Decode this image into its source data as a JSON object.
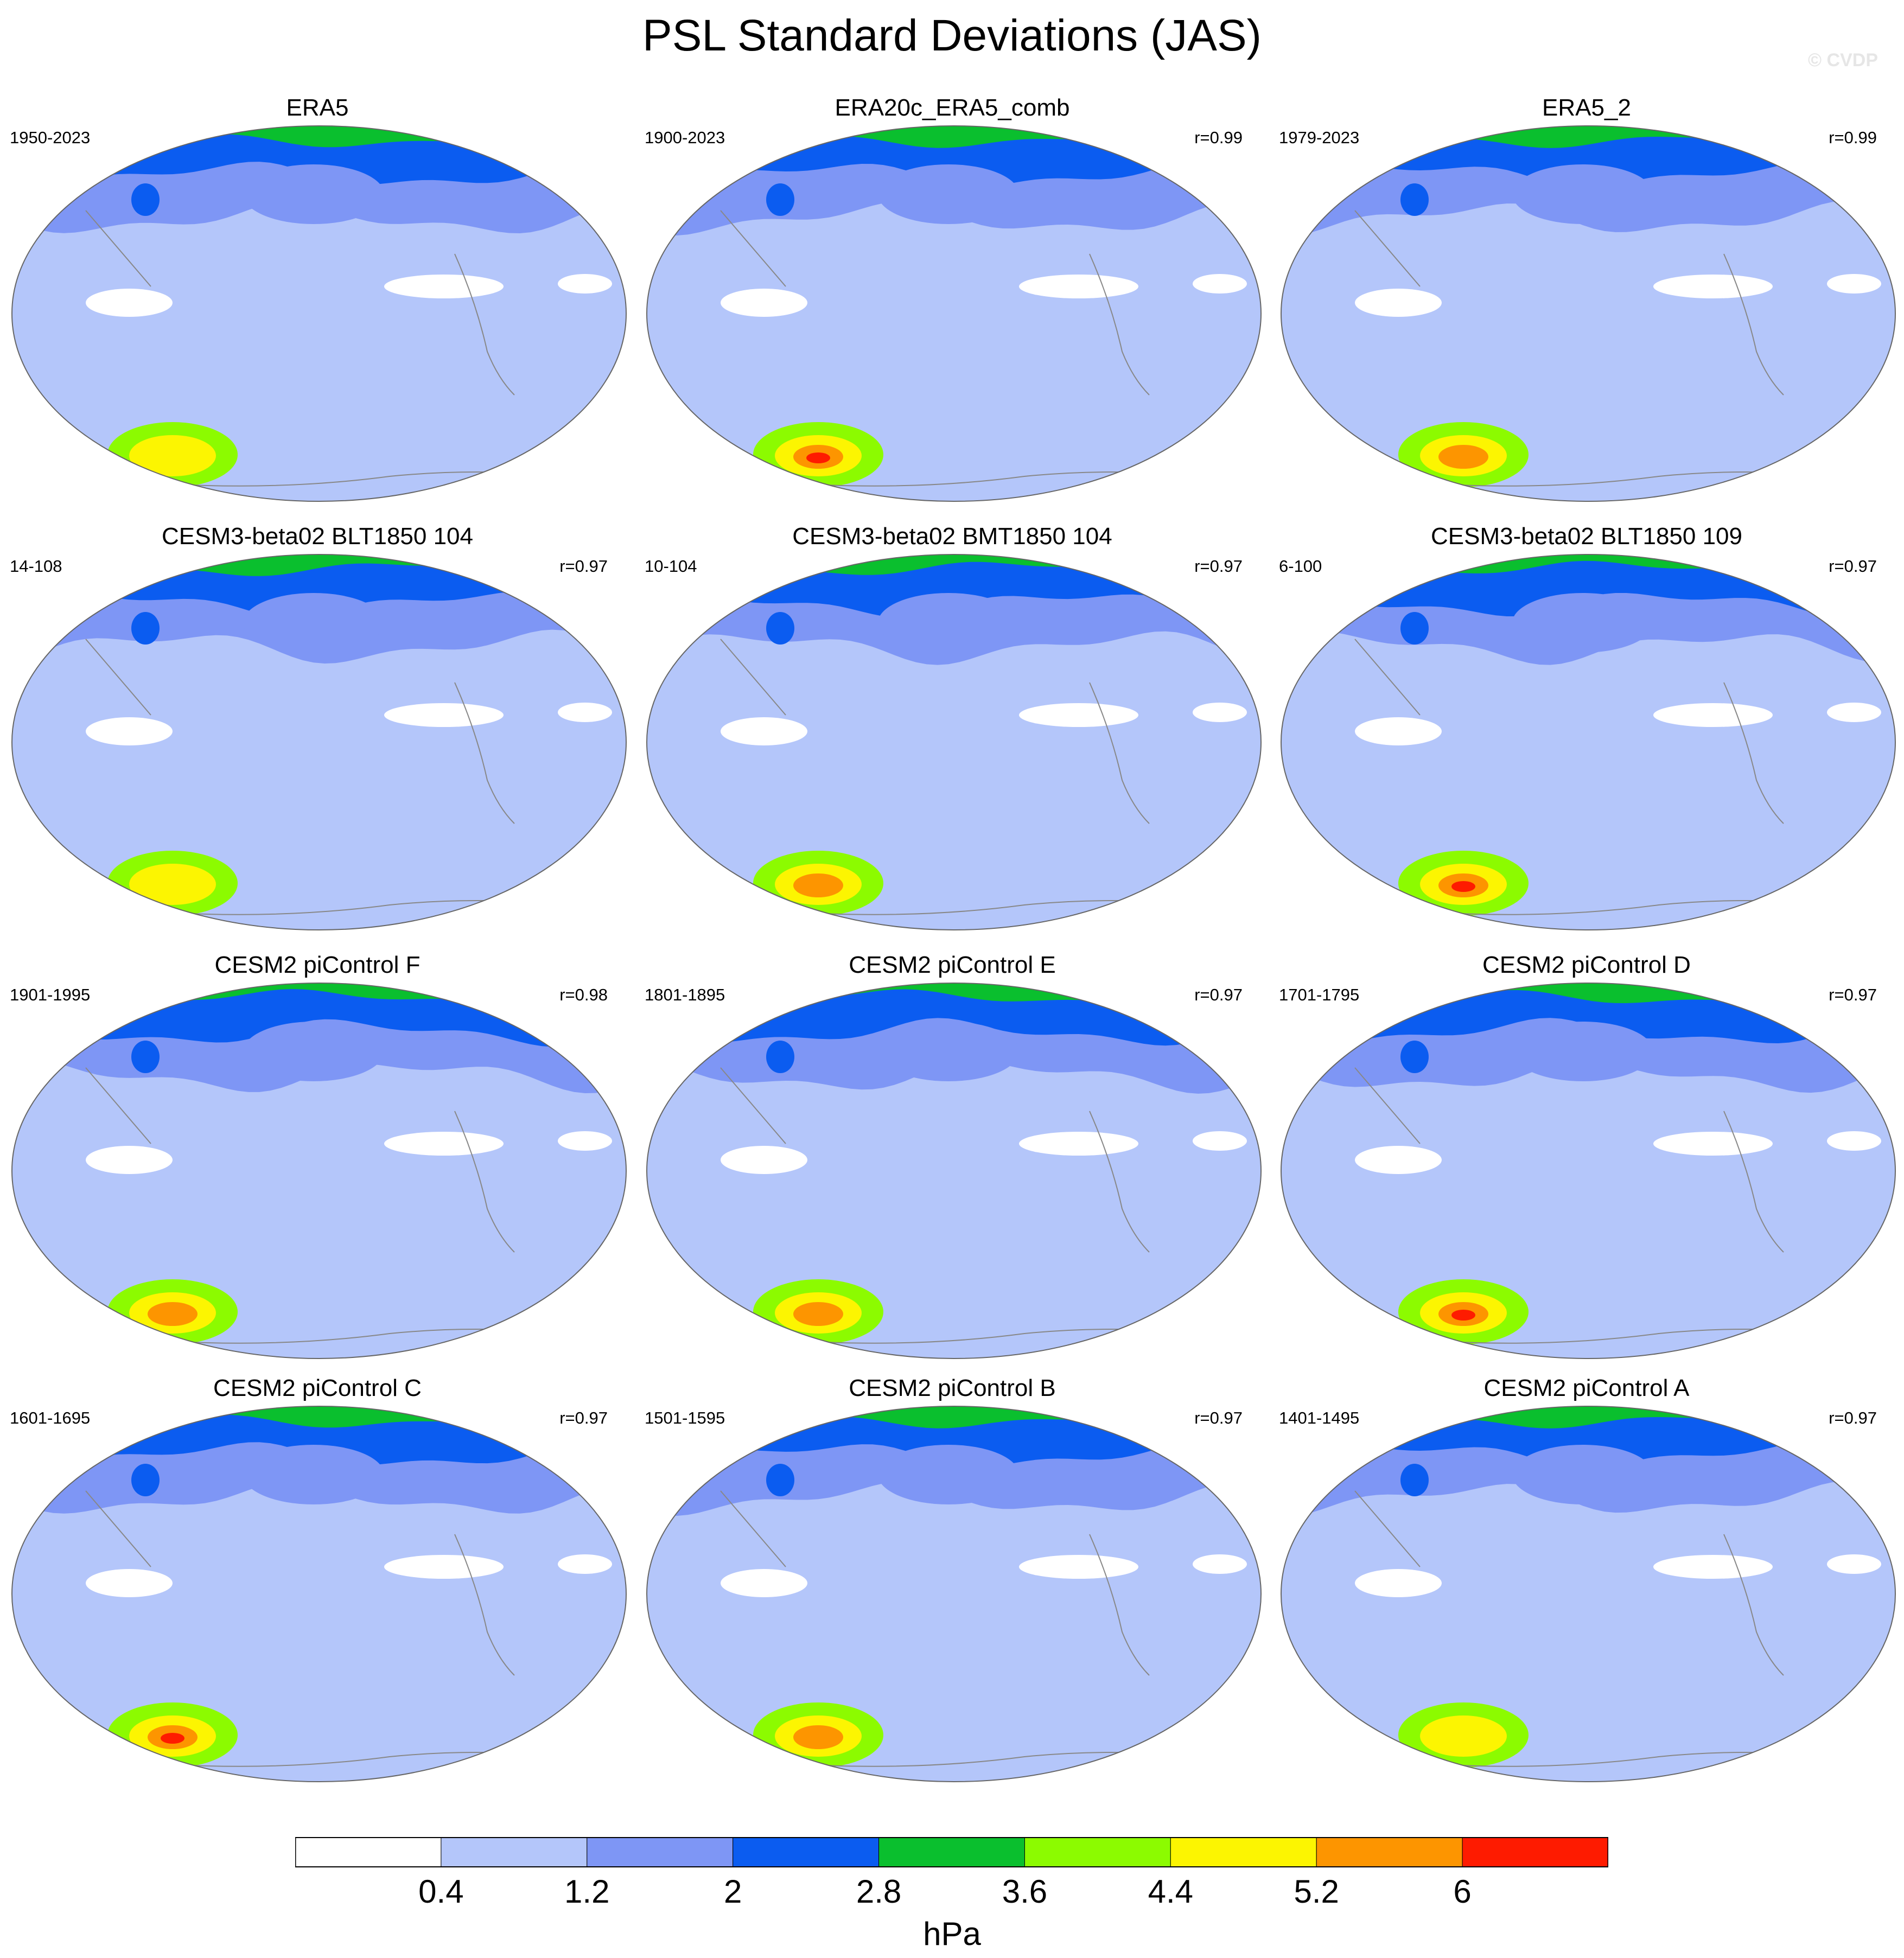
{
  "title": "PSL Standard Deviations (JAS)",
  "watermark": "© CVDP",
  "colorbar": {
    "units": "hPa",
    "levels": [
      "0.4",
      "1.2",
      "2",
      "2.8",
      "3.6",
      "4.4",
      "5.2",
      "6"
    ],
    "colors": [
      "#ffffff",
      "#b4c6fa",
      "#7e96f5",
      "#0b5cf0",
      "#0abf2e",
      "#8cfb00",
      "#fcf501",
      "#fd9500",
      "#fe1b00"
    ]
  },
  "panels": [
    {
      "title": "ERA5",
      "years": "1950-2023",
      "corr": "",
      "max_level": 6
    },
    {
      "title": "ERA20c_ERA5_comb",
      "years": "1900-2023",
      "corr": "r=0.99",
      "max_level": 8
    },
    {
      "title": "ERA5_2",
      "years": "1979-2023",
      "corr": "r=0.99",
      "max_level": 7
    },
    {
      "title": "CESM3-beta02 BLT1850 104",
      "years": "14-108",
      "corr": "r=0.97",
      "max_level": 6
    },
    {
      "title": "CESM3-beta02 BMT1850 104",
      "years": "10-104",
      "corr": "r=0.97",
      "max_level": 7
    },
    {
      "title": "CESM3-beta02 BLT1850 109",
      "years": "6-100",
      "corr": "r=0.97",
      "max_level": 8
    },
    {
      "title": "CESM2 piControl F",
      "years": "1901-1995",
      "corr": "r=0.98",
      "max_level": 7
    },
    {
      "title": "CESM2 piControl E",
      "years": "1801-1895",
      "corr": "r=0.97",
      "max_level": 7
    },
    {
      "title": "CESM2 piControl D",
      "years": "1701-1795",
      "corr": "r=0.97",
      "max_level": 8
    },
    {
      "title": "CESM2 piControl C",
      "years": "1601-1695",
      "corr": "r=0.97",
      "max_level": 8
    },
    {
      "title": "CESM2 piControl B",
      "years": "1501-1595",
      "corr": "r=0.97",
      "max_level": 7
    },
    {
      "title": "CESM2 piControl A",
      "years": "1401-1495",
      "corr": "r=0.97",
      "max_level": 6
    }
  ]
}
